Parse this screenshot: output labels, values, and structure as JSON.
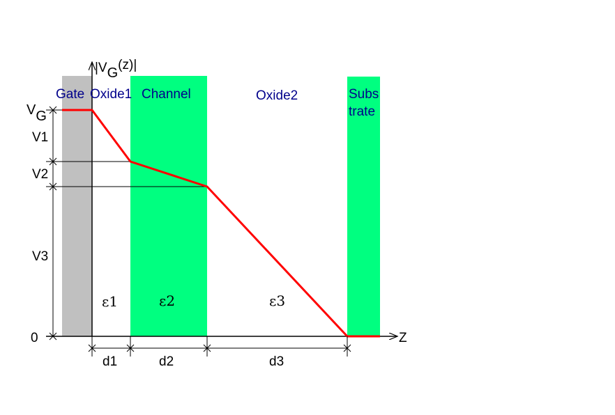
{
  "axis": {
    "y_label_main": "|V",
    "y_label_sub": "G",
    "y_label_rest": "(z)|",
    "x_label": "Z"
  },
  "regions": {
    "gate": "Gate",
    "oxide1": "Oxide1",
    "channel": "Channel",
    "oxide2": "Oxide2",
    "substrate_line1": "Subs",
    "substrate_line2": "trate"
  },
  "voltages": {
    "vg_main": "V",
    "vg_sub": "G",
    "v1": "V1",
    "v2": "V2",
    "v3": "V3",
    "zero": "0"
  },
  "permittivities": {
    "e1": "ε1",
    "e2": "ε2",
    "e3": "ε3"
  },
  "thicknesses": {
    "d1": "d1",
    "d2": "d2",
    "d3": "d3"
  },
  "colors": {
    "gate_fill": "#c0c0c0",
    "channel_fill": "#00ff80",
    "substrate_fill": "#00ff80",
    "potential_line": "#ff0000",
    "region_label": "#00008b"
  }
}
